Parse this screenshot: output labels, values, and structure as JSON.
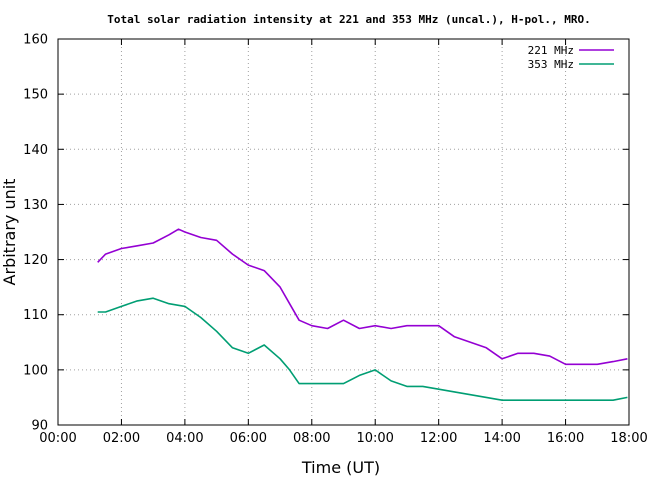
{
  "chart_data": {
    "type": "line",
    "title": "Total solar radiation intensity at 221 and 353 MHz (uncal.), H-pol., MRO.",
    "xlabel": "Time (UT)",
    "ylabel": "Arbitrary unit",
    "xlim": [
      0,
      18
    ],
    "ylim": [
      90,
      160
    ],
    "x_ticks": [
      "00:00",
      "02:00",
      "04:00",
      "06:00",
      "08:00",
      "10:00",
      "12:00",
      "14:00",
      "16:00",
      "18:00"
    ],
    "y_ticks": [
      "90",
      "100",
      "110",
      "120",
      "130",
      "140",
      "150",
      "160"
    ],
    "grid": true,
    "legend": "top-right",
    "series": [
      {
        "name": "221 MHz",
        "color": "#9400d3",
        "x": [
          1.25,
          1.5,
          2.0,
          2.5,
          3.0,
          3.5,
          3.8,
          4.0,
          4.5,
          5.0,
          5.5,
          6.0,
          6.5,
          7.0,
          7.3,
          7.6,
          8.0,
          8.5,
          9.0,
          9.5,
          10.0,
          10.5,
          11.0,
          11.5,
          12.0,
          12.5,
          13.0,
          13.5,
          14.0,
          14.5,
          15.0,
          15.5,
          16.0,
          16.5,
          17.0,
          17.5,
          17.95
        ],
        "values": [
          119.5,
          121,
          122,
          122.5,
          123,
          124.5,
          125.5,
          125,
          124,
          123.5,
          121,
          119,
          118,
          115,
          112,
          109,
          108,
          107.5,
          109,
          107.5,
          108,
          107.5,
          108,
          108,
          108,
          106,
          105,
          104,
          102,
          103,
          103,
          102.5,
          101,
          101,
          101,
          101.5,
          102
        ]
      },
      {
        "name": "353 MHz",
        "color": "#009e73",
        "x": [
          1.25,
          1.5,
          2.0,
          2.5,
          3.0,
          3.5,
          4.0,
          4.5,
          5.0,
          5.5,
          6.0,
          6.5,
          7.0,
          7.3,
          7.6,
          8.0,
          8.5,
          9.0,
          9.5,
          10.0,
          10.5,
          11.0,
          11.5,
          12.0,
          12.5,
          13.0,
          13.5,
          14.0,
          14.5,
          15.0,
          15.5,
          16.0,
          16.5,
          17.0,
          17.5,
          17.95
        ],
        "values": [
          110.5,
          110.5,
          111.5,
          112.5,
          113,
          112,
          111.5,
          109.5,
          107,
          104,
          103,
          104.5,
          102,
          100,
          97.5,
          97.5,
          97.5,
          97.5,
          99,
          100,
          98,
          97,
          97,
          96.5,
          96,
          95.5,
          95,
          94.5,
          94.5,
          94.5,
          94.5,
          94.5,
          94.5,
          94.5,
          94.5,
          95
        ]
      }
    ]
  }
}
